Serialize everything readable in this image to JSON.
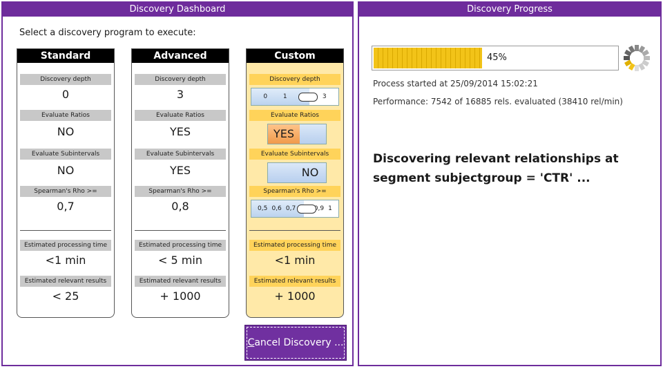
{
  "left_panel": {
    "title": "Discovery Dashboard",
    "prompt": "Select a discovery program to execute:",
    "cards": [
      {
        "name": "Standard",
        "depth_label": "Discovery depth",
        "depth": "0",
        "ratios_label": "Evaluate Ratios",
        "ratios": "NO",
        "subint_label": "Evaluate Subintervals",
        "subint": "NO",
        "rho_label": "Spearman's Rho >=",
        "rho": "0,7",
        "time_label": "Estimated processing time",
        "time": "<1 min",
        "results_label": "Estimated relevant results",
        "results": "< 25"
      },
      {
        "name": "Advanced",
        "depth_label": "Discovery depth",
        "depth": "3",
        "ratios_label": "Evaluate Ratios",
        "ratios": "YES",
        "subint_label": "Evaluate Subintervals",
        "subint": "YES",
        "rho_label": "Spearman's Rho >=",
        "rho": "0,8",
        "time_label": "Estimated processing time",
        "time": "< 5 min",
        "results_label": "Estimated relevant results",
        "results": "+ 1000"
      },
      {
        "name": "Custom",
        "depth_label": "Discovery depth",
        "depth_slider": {
          "ticks": [
            "0",
            "1",
            "2",
            "3"
          ],
          "value_fraction": 0.67
        },
        "ratios_label": "Evaluate Ratios",
        "ratios_toggle": "YES",
        "subint_label": "Evaluate Subintervals",
        "subint_toggle": "NO",
        "rho_label": "Spearman's Rho >=",
        "rho_slider": {
          "ticks": [
            "0,5",
            "0,6",
            "0,7",
            "0,8",
            "0,9",
            "1"
          ],
          "value_fraction": 0.6
        },
        "time_label": "Estimated processing time",
        "time": "<1 min",
        "results_label": "Estimated relevant results",
        "results": "+ 1000"
      }
    ],
    "cancel_button": {
      "accel": "C",
      "rest": "ancel Discovery ..."
    }
  },
  "right_panel": {
    "title": "Discovery Progress",
    "progress_percent": 45,
    "progress_label": "45%",
    "started": "Process started at 25/09/2014 15:02:21",
    "performance": "Performance: 7542 of 16885 rels. evaluated (38410 rel/min)",
    "status_line1": "Discovering relevant relationships at",
    "status_line2": "segment subjectgroup = 'CTR' ..."
  },
  "colors": {
    "accent": "#6e2c9c",
    "custom_bg": "#ffe9a8",
    "custom_label_bg": "#ffd35a",
    "progress": "#f2c318"
  }
}
